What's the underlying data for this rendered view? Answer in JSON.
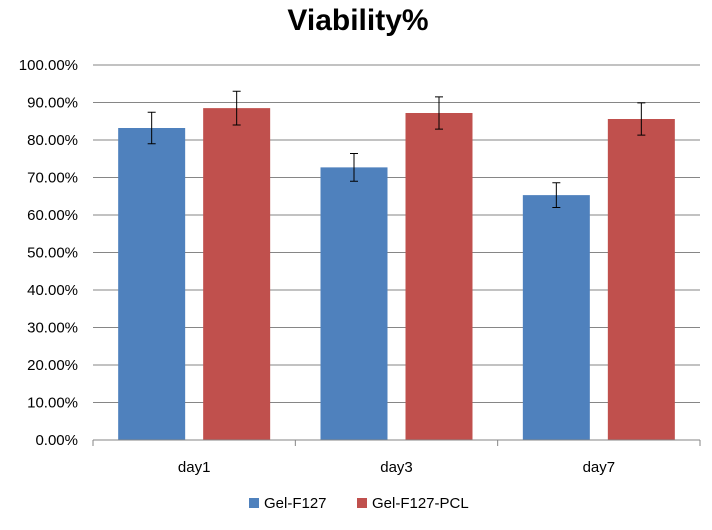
{
  "chart_data": {
    "type": "bar",
    "title": "Viability%",
    "xlabel": "",
    "ylabel": "",
    "categories": [
      "day1",
      "day3",
      "day7"
    ],
    "ylim": [
      0,
      100
    ],
    "ytick_values": [
      0,
      10,
      20,
      30,
      40,
      50,
      60,
      70,
      80,
      90,
      100
    ],
    "ytick_labels": [
      "0.00%",
      "10.00%",
      "20.00%",
      "30.00%",
      "40.00%",
      "50.00%",
      "60.00%",
      "70.00%",
      "80.00%",
      "90.00%",
      "100.00%"
    ],
    "grid": true,
    "legend_position": "bottom",
    "series": [
      {
        "name": "Gel-F127",
        "color": "#4f81bd",
        "values": [
          83.2,
          72.7,
          65.3
        ],
        "errors": [
          4.2,
          3.7,
          3.3
        ]
      },
      {
        "name": "Gel-F127-PCL",
        "color": "#c0504d",
        "values": [
          88.5,
          87.2,
          85.6
        ],
        "errors": [
          4.5,
          4.3,
          4.3
        ]
      }
    ]
  }
}
